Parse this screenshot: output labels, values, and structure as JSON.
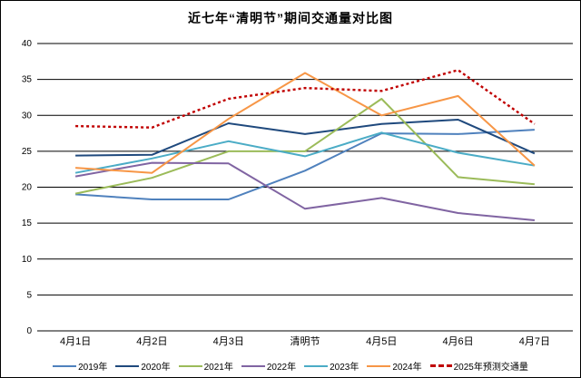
{
  "chart_data": {
    "type": "line",
    "title": "近七年“清明节”期间交通量对比图",
    "categories": [
      "4月1日",
      "4月2日",
      "4月3日",
      "清明节",
      "4月5日",
      "4月6日",
      "4月7日"
    ],
    "xlabel": "",
    "ylabel": "",
    "ylim": [
      0,
      40
    ],
    "ytick_step": 5,
    "grid": true,
    "legend_position": "bottom",
    "series": [
      {
        "name": "2019年",
        "color": "#4f81bd",
        "style": "solid",
        "values": [
          19.0,
          18.3,
          18.3,
          22.3,
          27.5,
          27.4,
          28.0
        ]
      },
      {
        "name": "2020年",
        "color": "#1f497d",
        "style": "solid",
        "values": [
          24.4,
          24.5,
          28.9,
          27.4,
          28.8,
          29.4,
          24.7
        ]
      },
      {
        "name": "2021年",
        "color": "#9bbb59",
        "style": "solid",
        "values": [
          19.1,
          21.3,
          25.0,
          25.0,
          32.3,
          21.4,
          20.4
        ]
      },
      {
        "name": "2022年",
        "color": "#8064a2",
        "style": "solid",
        "values": [
          21.5,
          23.4,
          23.3,
          17.0,
          18.5,
          16.4,
          15.4
        ]
      },
      {
        "name": "2023年",
        "color": "#4bacc6",
        "style": "solid",
        "values": [
          22.0,
          24.0,
          26.4,
          24.3,
          27.6,
          24.8,
          23.0
        ]
      },
      {
        "name": "2024年",
        "color": "#f79646",
        "style": "solid",
        "values": [
          22.7,
          22.0,
          29.5,
          35.9,
          30.0,
          32.7,
          23.0
        ]
      },
      {
        "name": "2025年预测交通量",
        "color": "#c00000",
        "style": "dotted",
        "values": [
          28.5,
          28.3,
          32.3,
          33.8,
          33.4,
          36.3,
          28.8
        ]
      }
    ]
  }
}
